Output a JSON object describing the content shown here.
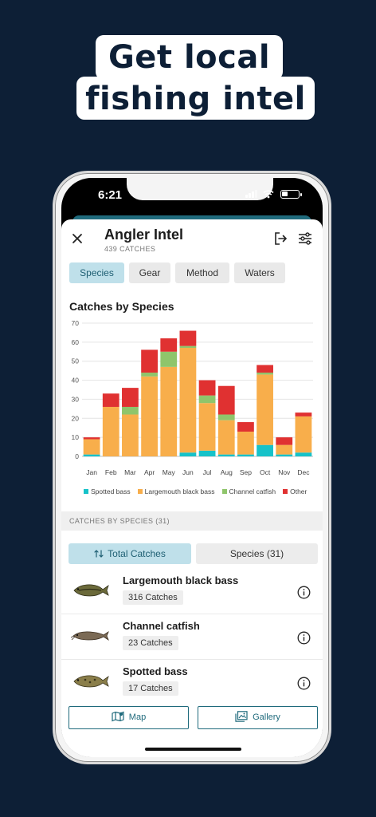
{
  "headline": {
    "line1": "Get local",
    "line2": "fishing intel"
  },
  "status_bar": {
    "time": "6:21"
  },
  "header": {
    "title": "Angler Intel",
    "subtitle": "439 CATCHES"
  },
  "tabs": [
    {
      "label": "Species",
      "active": true
    },
    {
      "label": "Gear",
      "active": false
    },
    {
      "label": "Method",
      "active": false
    },
    {
      "label": "Waters",
      "active": false
    }
  ],
  "chart_title": "Catches by Species",
  "chart_data": {
    "type": "bar",
    "stacked": true,
    "title": "Catches by Species",
    "categories": [
      "Jan",
      "Feb",
      "Mar",
      "Apr",
      "May",
      "Jun",
      "Jul",
      "Aug",
      "Sep",
      "Oct",
      "Nov",
      "Dec"
    ],
    "ylim": [
      0,
      70
    ],
    "yticks": [
      0,
      10,
      20,
      30,
      40,
      50,
      60,
      70
    ],
    "grid": true,
    "legend_position": "bottom",
    "series": [
      {
        "name": "Spotted bass",
        "color": "#16c2c9",
        "values": [
          1,
          0,
          0,
          0,
          0,
          2,
          3,
          1,
          1,
          6,
          1,
          2
        ]
      },
      {
        "name": "Largemouth black bass",
        "color": "#f8ae4b",
        "values": [
          8,
          26,
          22,
          42,
          47,
          55,
          25,
          18,
          12,
          37,
          5,
          19
        ]
      },
      {
        "name": "Channel catfish",
        "color": "#8fc56b",
        "values": [
          0,
          0,
          4,
          2,
          8,
          1,
          4,
          3,
          0,
          1,
          0,
          0
        ]
      },
      {
        "name": "Other",
        "color": "#e03131",
        "values": [
          1,
          7,
          10,
          12,
          7,
          8,
          8,
          15,
          5,
          4,
          4,
          2
        ]
      }
    ]
  },
  "section_header": "CATCHES BY SPECIES (31)",
  "toggle": {
    "total_label": "Total Catches",
    "species_label": "Species (31)"
  },
  "species": [
    {
      "name": "Largemouth black bass",
      "count": "316 Catches"
    },
    {
      "name": "Channel catfish",
      "count": "23 Catches"
    },
    {
      "name": "Spotted bass",
      "count": "17 Catches"
    }
  ],
  "bottom_buttons": {
    "map_label": "Map",
    "gallery_label": "Gallery"
  },
  "colors": {
    "accent": "#1f6a7c",
    "active_tab_bg": "#bfe0ea",
    "background": "#0d1f36"
  },
  "icons": {
    "close": "close-icon",
    "export": "export-icon",
    "filter": "filter-sliders-icon",
    "sort": "sort-arrows-icon",
    "info": "info-icon",
    "map": "map-icon",
    "gallery": "gallery-icon"
  }
}
